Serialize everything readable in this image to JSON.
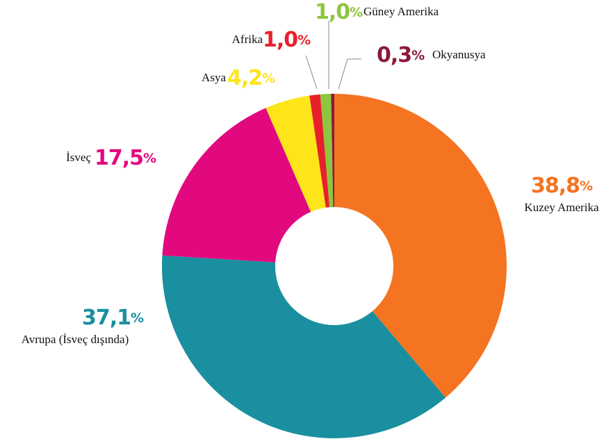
{
  "chart_data": {
    "type": "donut",
    "categories": [
      "Kuzey Amerika",
      "Avrupa (İsveç dışında)",
      "İsveç",
      "Asya",
      "Afrika",
      "Güney Amerika",
      "Okyanusya"
    ],
    "values": [
      38.8,
      37.1,
      17.5,
      4.2,
      1.0,
      1.0,
      0.3
    ],
    "value_labels": [
      "38,8%",
      "37,1%",
      "17,5%",
      "4,2%",
      "1,0%",
      "1,0%",
      "0,3%"
    ],
    "colors": [
      "#f47421",
      "#1a8fa0",
      "#e2097f",
      "#fde51a",
      "#e8202a",
      "#8dc63f",
      "#8b1a3a"
    ]
  }
}
